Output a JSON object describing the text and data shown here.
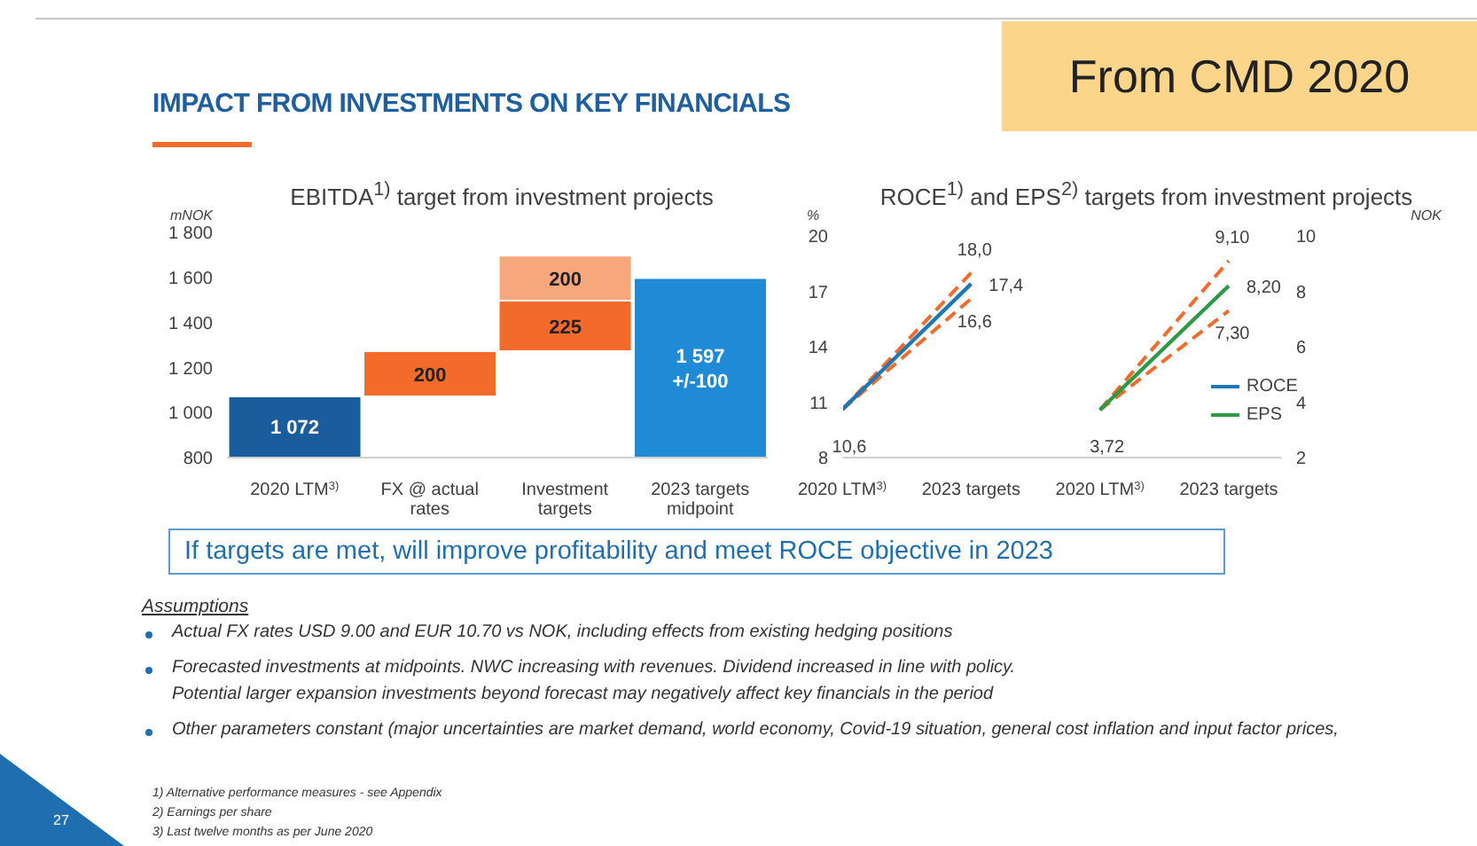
{
  "chart_data": [
    {
      "type": "other",
      "title": "IMPACT FROM INVESTMENTS ON KEY FINANCIALS",
      "annotations": [
        "From CMD 2020"
      ]
    },
    {
      "type": "bar",
      "title": "EBITDA$^{1)}$ target from investment projects",
      "ylabel": "mNOK",
      "categories": [
        "2020 LTM$^{3)}$",
        "FX @ actual rates",
        "Investment targets",
        "2023 targets midpoint"
      ],
      "series": [
        {
          "colors": [
            "#1a5d9c",
            "#f26b2a",
            "#f26b2a",
            "#1f8ad6"
          ],
          "values": [
            1072,
            200,
            225,
            1597
          ],
          "base": [
            null,
            1072,
            1272,
            null
          ],
          "value_labels": [
            "1 072",
            "200",
            "225",
            "1 597\n+/-100"
          ]
        },
        {
          "color": "#f7a77c",
          "values": [
            null,
            null,
            200,
            null
          ],
          "base": [
            null,
            null,
            1497,
            null
          ],
          "value_labels": [
            null,
            null,
            "200",
            null
          ]
        }
      ],
      "ylim": [
        800,
        1800
      ],
      "yticks": [
        800,
        {
          "value": 1000,
          "label": "1 000"
        },
        {
          "value": 1200,
          "label": "1 200"
        },
        {
          "value": 1400,
          "label": "1 400"
        },
        {
          "value": 1600,
          "label": "1 600"
        },
        {
          "value": 1800,
          "label": "1 800"
        }
      ]
    },
    {
      "type": "line",
      "title": "ROCE$^{1)}$ and EPS$^{2)}$ targets from investment projects",
      "ylabel": "%",
      "y2label": "NOK",
      "categories": [
        "2020 LTM$^{3)}$",
        "2023 targets",
        "2020 LTM$^{3)}$",
        "2023 targets"
      ],
      "series": [
        {
          "color": "#f26b2a",
          "line_style": "dashed",
          "values": [
            10.6,
            18.0,
            null,
            null
          ],
          "value_labels": [
            null,
            "18,0",
            null,
            null
          ]
        },
        {
          "color": "#f26b2a",
          "line_style": "dashed",
          "values": [
            10.6,
            16.6,
            null,
            null
          ],
          "value_labels": [
            null,
            "16,6",
            null,
            null
          ]
        },
        {
          "color": "#f26b2a",
          "line_style": "dashed",
          "axis": "y2",
          "values": [
            null,
            null,
            3.72,
            9.1
          ],
          "value_labels": [
            null,
            null,
            null,
            "9,10"
          ]
        },
        {
          "color": "#f26b2a",
          "line_style": "dashed",
          "axis": "y2",
          "values": [
            null,
            null,
            3.72,
            7.3
          ],
          "value_labels": [
            null,
            null,
            null,
            "7,30"
          ]
        },
        {
          "name": "ROCE",
          "color": "#1f77b4",
          "values": [
            10.6,
            17.4,
            null,
            null
          ],
          "value_labels": [
            "10,6",
            "17,4",
            null,
            null
          ]
        },
        {
          "name": "EPS",
          "color": "#2e9a48",
          "axis": "y2",
          "values": [
            null,
            null,
            3.72,
            8.2
          ],
          "value_labels": [
            null,
            null,
            "3,72",
            "8,20"
          ]
        }
      ],
      "ylim": [
        8,
        20
      ],
      "yticks": [
        8,
        11,
        14,
        17,
        20
      ],
      "y2lim": [
        2,
        10
      ],
      "y2ticks": [
        2,
        4,
        6,
        8,
        10
      ],
      "legend": "bottom right",
      "marker": "none",
      "line_style": "solid"
    },
    {
      "type": "other",
      "annotations": [
        "If targets are met, will improve profitability and meet ROCE objective in 2023",
        "Assumptions",
        "Actual FX rates USD 9.00 and EUR 10.70 vs NOK, including effects from existing hedging positions",
        "Forecasted investments at midpoints. NWC increasing with revenues. Dividend increased in line with policy.",
        "Potential larger expansion investments beyond forecast may negatively affect key financials in the period",
        "Other parameters constant (major uncertainties are market demand, world economy, Covid-19 situation, general cost inflation and input factor prices,",
        "1) Alternative performance measures - see Appendix",
        "2) Earnings per share",
        "3) Last twelve months as per June 2020",
        "27"
      ]
    }
  ]
}
